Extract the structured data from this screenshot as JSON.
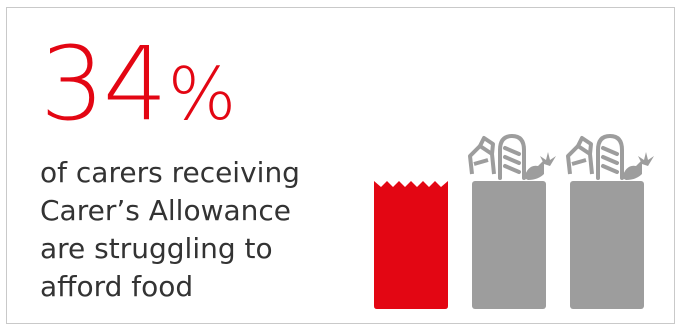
{
  "stat": {
    "value": "34",
    "unit": "%"
  },
  "caption": {
    "line1": "of carers receiving",
    "line2": "Carer’s Allowance",
    "line3": "are struggling to",
    "line4": "afford food"
  },
  "bags": {
    "items": [
      {
        "icon": "red-bag-icon",
        "fill": "#e30613",
        "highlighted": true
      },
      {
        "icon": "grocery-bag-icon",
        "fill": "#9d9d9d",
        "highlighted": false
      },
      {
        "icon": "grocery-bag-icon",
        "fill": "#9d9d9d",
        "highlighted": false
      }
    ]
  },
  "colors": {
    "accent": "#e30613",
    "bag_grey": "#9d9d9d",
    "text": "#333333",
    "border": "#c9c9c9"
  }
}
